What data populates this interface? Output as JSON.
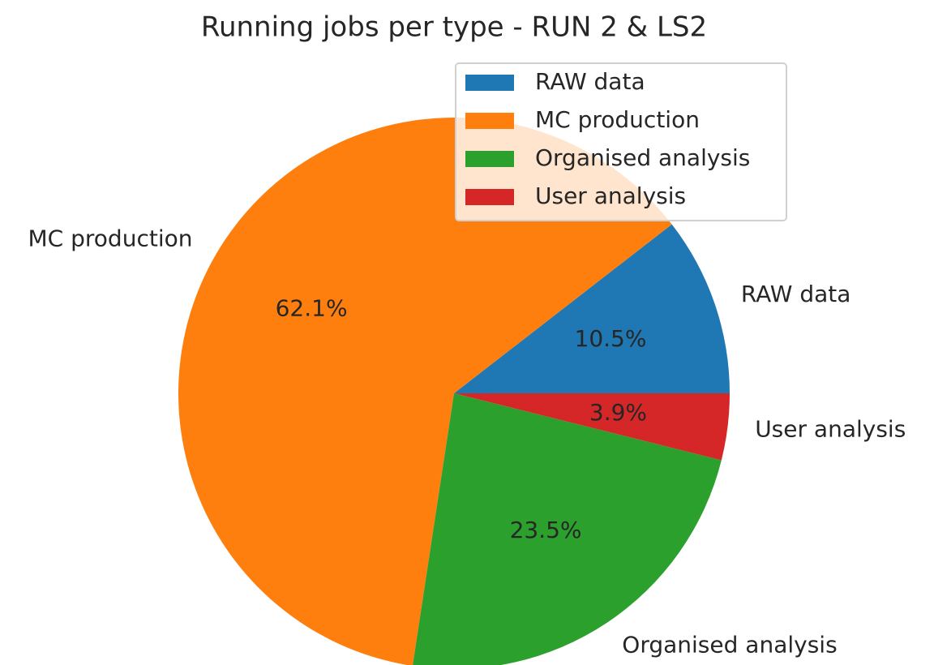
{
  "chart_data": {
    "type": "pie",
    "title": "Running jobs per type - RUN 2 & LS2",
    "categories": [
      "RAW data",
      "MC production",
      "Organised analysis",
      "User analysis"
    ],
    "values": [
      10.5,
      62.1,
      23.5,
      3.9
    ],
    "value_labels": [
      "10.5%",
      "62.1%",
      "23.5%",
      "3.9%"
    ],
    "colors": [
      "#1f77b4",
      "#ff7f0e",
      "#2ca02c",
      "#d62728"
    ],
    "legend": "upper right"
  }
}
